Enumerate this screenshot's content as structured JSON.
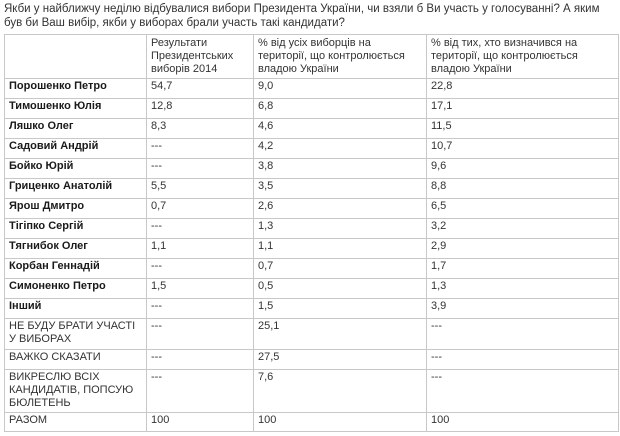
{
  "question": "Якби у найближчу неділю відбувалися вибори Президента України, чи взяли б Ви участь у голосуванні? А яким був би Ваш вибір, якби у виборах брали участь такі кандидати?",
  "columns": [
    "",
    "Результати Президентських виборів 2014",
    "% від усіх виборців на території, що контролюється владою України",
    "% від тих, хто визначився  на території, що контролюється владою України"
  ],
  "rows": [
    {
      "name": "Порошенко Петро",
      "r2014": "54,7",
      "all": "9,0",
      "decided": "22,8"
    },
    {
      "name": "Тимошенко Юлія",
      "r2014": "12,8",
      "all": "6,8",
      "decided": "17,1"
    },
    {
      "name": "Ляшко Олег",
      "r2014": "8,3",
      "all": "4,6",
      "decided": "11,5"
    },
    {
      "name": "Садовий Андрій",
      "r2014": "---",
      "all": "4,2",
      "decided": "10,7"
    },
    {
      "name": "Бойко Юрій",
      "r2014": "---",
      "all": "3,8",
      "decided": "9,6"
    },
    {
      "name": "Гриценко Анатолій",
      "r2014": "5,5",
      "all": "3,5",
      "decided": "8,8"
    },
    {
      "name": "Ярош Дмитро",
      "r2014": "0,7",
      "all": "2,6",
      "decided": "6,5"
    },
    {
      "name": "Тігіпко Сергій",
      "r2014": "---",
      "all": "1,3",
      "decided": "3,2"
    },
    {
      "name": "Тягнибок Олег",
      "r2014": "1,1",
      "all": "1,1",
      "decided": "2,9"
    },
    {
      "name": "Корбан Геннадій",
      "r2014": "---",
      "all": "0,7",
      "decided": "1,7"
    },
    {
      "name": "Симоненко Петро",
      "r2014": "1,5",
      "all": "0,5",
      "decided": "1,3"
    },
    {
      "name": "Інший",
      "r2014": "---",
      "all": "1,5",
      "decided": "3,9"
    },
    {
      "name": "НЕ БУДУ БРАТИ УЧАСТІ У ВИБОРАХ",
      "r2014": "---",
      "all": "25,1",
      "decided": "---"
    },
    {
      "name": "ВАЖКО СКАЗАТИ",
      "r2014": "---",
      "all": "27,5",
      "decided": "---"
    },
    {
      "name": "ВИКРЕСЛЮ ВСІХ КАНДИДАТІВ, ПОПСУЮ БЮЛЕТЕНЬ",
      "r2014": "---",
      "all": "7,6",
      "decided": "---"
    },
    {
      "name": "РАЗОМ",
      "r2014": "100",
      "all": "100",
      "decided": "100"
    }
  ]
}
